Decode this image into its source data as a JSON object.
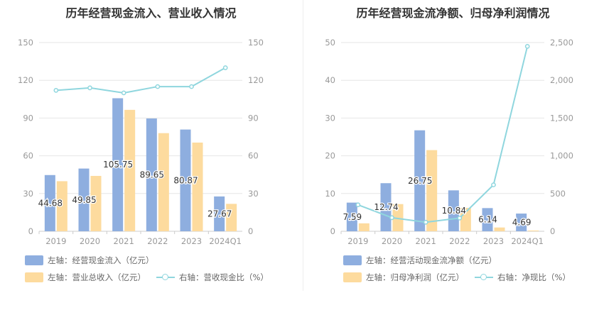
{
  "colors": {
    "bar_blue": "#8eaedf",
    "bar_orange": "#fddb9e",
    "line": "#8fd6de",
    "grid": "#e6e6e6",
    "axis_text": "#999999",
    "label": "#333333"
  },
  "left": {
    "title": "历年经营现金流入、营业收入情况",
    "legend": {
      "bar1": "左轴：经营现金流入（亿元）",
      "bar2": "左轴：营业总收入（亿元）",
      "line": "右轴：营收现金比（%）"
    }
  },
  "right": {
    "title": "历年经营现金流净额、归母净利润情况",
    "legend": {
      "bar1": "左轴：经营活动现金流净额（亿元）",
      "bar2": "左轴：归母净利润（亿元）",
      "line": "右轴：净现比（%）"
    }
  },
  "chart_data": [
    {
      "type": "bar",
      "title": "历年经营现金流入、营业收入情况",
      "categories": [
        "2019",
        "2020",
        "2021",
        "2022",
        "2023",
        "2024Q1"
      ],
      "ylim_left": [
        0,
        150
      ],
      "yticks_left": [
        0,
        30,
        60,
        90,
        120,
        150
      ],
      "ylim_right": [
        0,
        150
      ],
      "yticks_right": [
        0,
        30,
        60,
        90,
        120,
        150
      ],
      "series": [
        {
          "name": "左轴：经营现金流入（亿元）",
          "kind": "bar",
          "axis": "left",
          "values": [
            44.68,
            49.85,
            105.75,
            89.65,
            80.87,
            27.67
          ],
          "labels": [
            "44.68",
            "49.85",
            "105.75",
            "89.65",
            "80.87",
            "27.67"
          ]
        },
        {
          "name": "左轴：营业总收入（亿元）",
          "kind": "bar",
          "axis": "left",
          "values": [
            39.8,
            44.0,
            96.5,
            78.0,
            70.5,
            21.8
          ]
        },
        {
          "name": "右轴：营收现金比（%）",
          "kind": "line",
          "axis": "right",
          "values": [
            112,
            114,
            110,
            115,
            115,
            130
          ]
        }
      ]
    },
    {
      "type": "bar",
      "title": "历年经营现金流净额、归母净利润情况",
      "categories": [
        "2019",
        "2020",
        "2021",
        "2022",
        "2023",
        "2024Q1"
      ],
      "ylim_left": [
        0,
        50
      ],
      "yticks_left": [
        0,
        10,
        20,
        30,
        40,
        50
      ],
      "ylim_right": [
        0,
        2500
      ],
      "yticks_right": [
        "0",
        "500",
        "1,000",
        "1,500",
        "2,000",
        "2,500"
      ],
      "series": [
        {
          "name": "左轴：经营活动现金流净额（亿元）",
          "kind": "bar",
          "axis": "left",
          "values": [
            7.59,
            12.74,
            26.75,
            10.84,
            6.14,
            4.69
          ],
          "labels": [
            "7.59",
            "12.74",
            "26.75",
            "10.84",
            "6.14",
            "4.69"
          ]
        },
        {
          "name": "左轴：归母净利润（亿元）",
          "kind": "bar",
          "axis": "left",
          "values": [
            2.1,
            7.2,
            21.5,
            6.2,
            1.0,
            0.2
          ]
        },
        {
          "name": "右轴：净现比（%）",
          "kind": "line",
          "axis": "right",
          "values": [
            350,
            180,
            120,
            175,
            615,
            2450
          ]
        }
      ]
    }
  ]
}
